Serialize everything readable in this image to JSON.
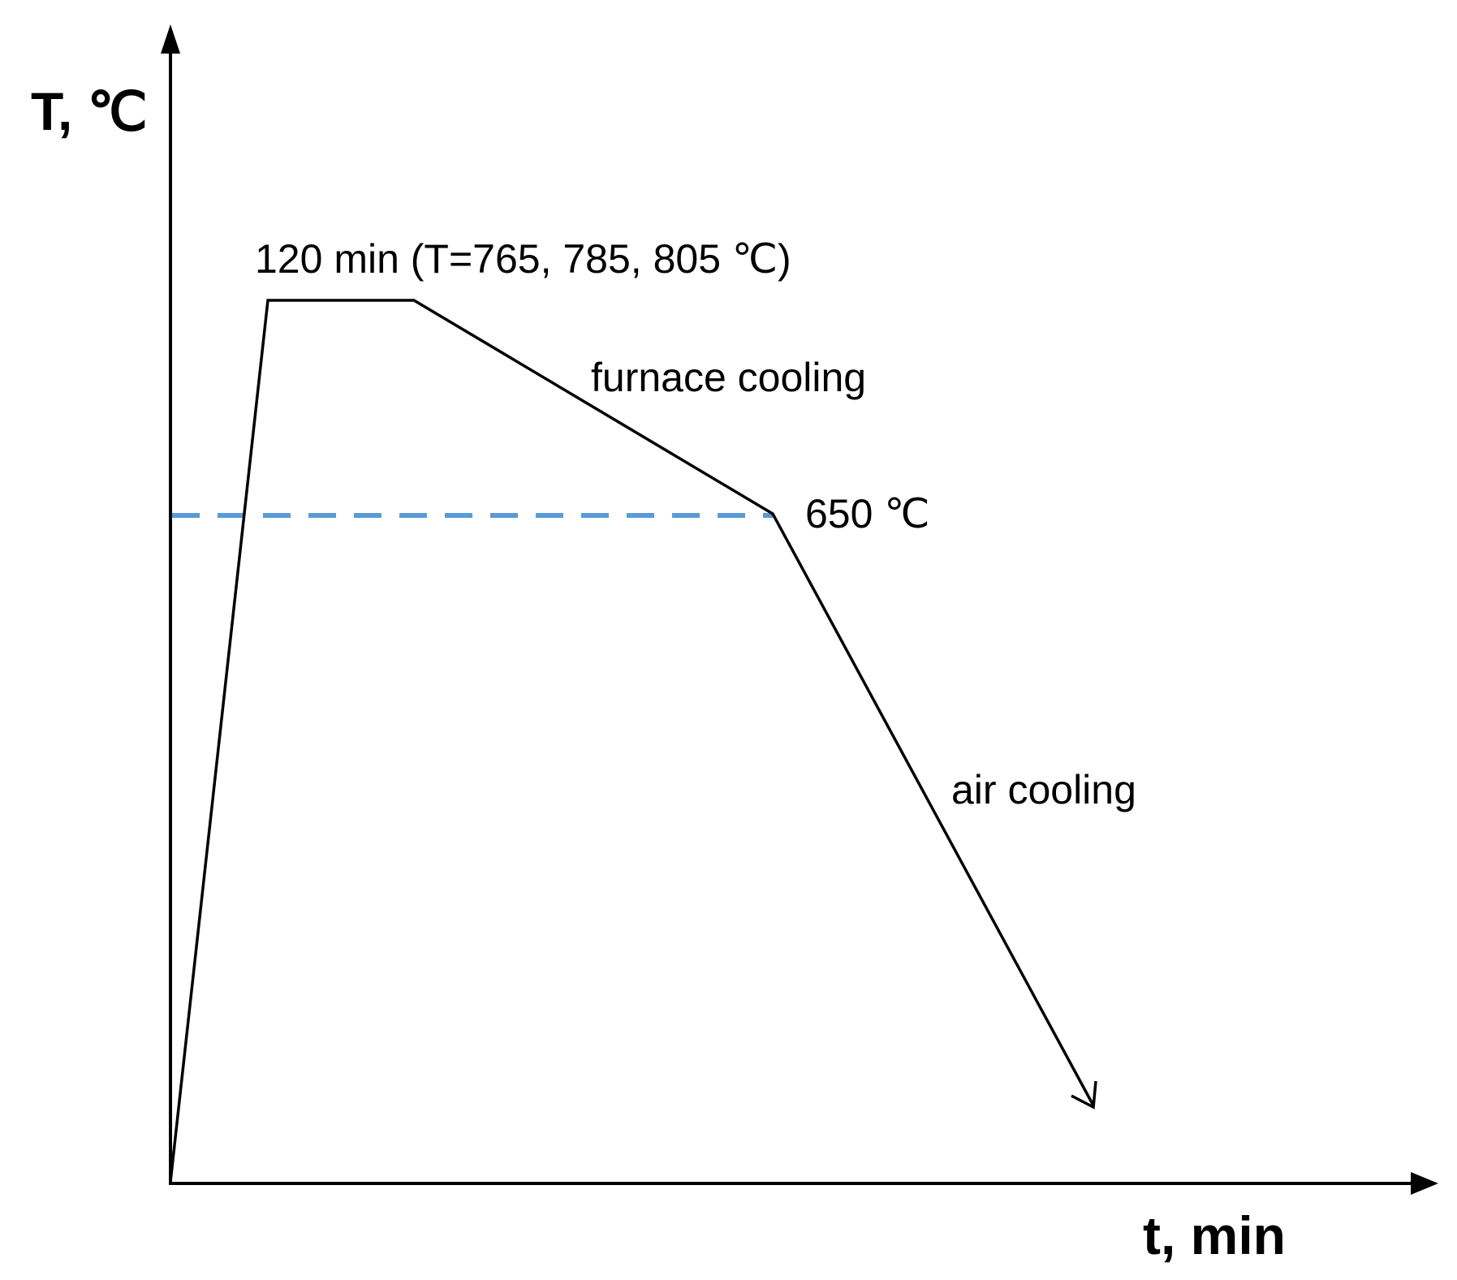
{
  "diagram": {
    "axes": {
      "y_title": "T, ℃",
      "x_title": "t, min"
    },
    "annotations": {
      "hold": "120 min (T=765, 785, 805 ℃)",
      "furnace_cooling": "furnace cooling",
      "transition_temp": "650 ℃",
      "air_cooling": "air cooling"
    },
    "colors": {
      "line": "#000000",
      "reference_line": "#5b9bd5"
    }
  }
}
